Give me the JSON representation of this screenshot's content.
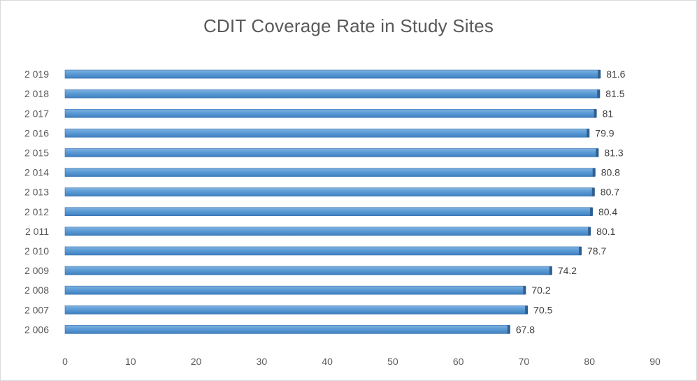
{
  "chart_data": {
    "type": "bar",
    "orientation": "horizontal",
    "title": "CDIT Coverage Rate in Study Sites",
    "xlabel": "",
    "ylabel": "",
    "categories": [
      "2 006",
      "2 007",
      "2 008",
      "2 009",
      "2 010",
      "2 011",
      "2 012",
      "2 013",
      "2 014",
      "2 015",
      "2 016",
      "2 017",
      "2 018",
      "2 019"
    ],
    "values": [
      67.8,
      70.5,
      70.2,
      74.2,
      78.7,
      80.1,
      80.4,
      80.7,
      80.8,
      81.3,
      79.9,
      81,
      81.5,
      81.6
    ],
    "xlim": [
      0,
      90
    ],
    "xticks": [
      0,
      10,
      20,
      30,
      40,
      50,
      60,
      70,
      80,
      90
    ],
    "grid": false,
    "legend": "none",
    "bar_color": "#5b9bd5",
    "data_labels": true
  }
}
